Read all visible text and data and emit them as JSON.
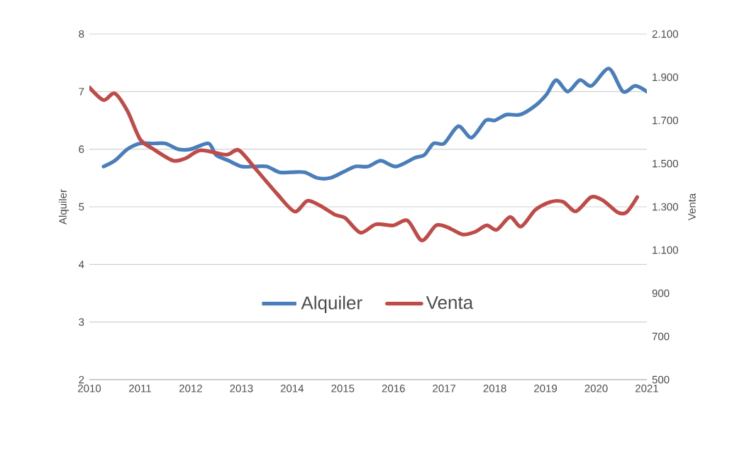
{
  "chart_data": {
    "type": "line",
    "ylabel": "Alquiler",
    "y2label": "Venta",
    "xlim": [
      2010,
      2021
    ],
    "xticks": [
      2010,
      2011,
      2012,
      2013,
      2014,
      2015,
      2016,
      2017,
      2018,
      2019,
      2020,
      2021
    ],
    "ylim": [
      2,
      8
    ],
    "yticks": [
      2,
      3,
      4,
      5,
      6,
      7,
      8
    ],
    "y2lim": [
      500,
      2100
    ],
    "y2ticks": [
      500,
      700,
      900,
      {
        "value": 1100,
        "label": "1.100"
      },
      {
        "value": 1300,
        "label": "1.300"
      },
      {
        "value": 1500,
        "label": "1.500"
      },
      {
        "value": 1700,
        "label": "1.700"
      },
      {
        "value": 1900,
        "label": "1.900"
      },
      {
        "value": 2100,
        "label": "2.100"
      }
    ],
    "grid": "y",
    "legend": "center",
    "marker": "none",
    "line_style": "solid",
    "series": [
      {
        "name": "Alquiler",
        "color": "#4a7ebb",
        "x": [
          2010.28,
          2010.5,
          2010.75,
          2011.0,
          2011.25,
          2011.5,
          2011.75,
          2012.0,
          2012.35,
          2012.5,
          2012.75,
          2013.0,
          2013.25,
          2013.5,
          2013.75,
          2014.0,
          2014.25,
          2014.5,
          2014.75,
          2015.0,
          2015.25,
          2015.5,
          2015.75,
          2016.05,
          2016.42,
          2016.61,
          2016.79,
          2017.0,
          2017.28,
          2017.54,
          2017.82,
          2018.0,
          2018.23,
          2018.5,
          2018.79,
          2019.02,
          2019.21,
          2019.44,
          2019.68,
          2019.91,
          2020.25,
          2020.53,
          2020.77,
          2021.0
        ],
        "values": [
          5.7,
          5.8,
          6.0,
          6.1,
          6.1,
          6.1,
          6.0,
          6.0,
          6.1,
          5.9,
          5.8,
          5.7,
          5.7,
          5.7,
          5.6,
          5.6,
          5.6,
          5.5,
          5.5,
          5.6,
          5.7,
          5.7,
          5.8,
          5.7,
          5.85,
          5.9,
          6.1,
          6.1,
          6.4,
          6.2,
          6.5,
          6.5,
          6.6,
          6.6,
          6.75,
          6.95,
          7.2,
          7.0,
          7.2,
          7.1,
          7.4,
          7.0,
          7.1,
          7.0
        ]
      },
      {
        "name": "Venta",
        "color": "#be4b48",
        "axis": "y2",
        "x": [
          2010.0,
          2010.28,
          2010.5,
          2010.75,
          2011.0,
          2011.25,
          2011.65,
          2011.9,
          2012.2,
          2012.7,
          2012.95,
          2013.3,
          2013.7,
          2014.05,
          2014.3,
          2014.55,
          2014.85,
          2015.05,
          2015.35,
          2015.65,
          2016.0,
          2016.28,
          2016.56,
          2016.84,
          2017.07,
          2017.36,
          2017.6,
          2017.84,
          2018.04,
          2018.3,
          2018.52,
          2018.8,
          2019.1,
          2019.35,
          2019.6,
          2019.9,
          2020.14,
          2020.42,
          2020.6,
          2020.81
        ],
        "values": [
          1853,
          1794,
          1825,
          1744,
          1613,
          1569,
          1514,
          1525,
          1562,
          1541,
          1562,
          1470,
          1361,
          1278,
          1328,
          1306,
          1263,
          1248,
          1180,
          1219,
          1214,
          1236,
          1144,
          1214,
          1205,
          1172,
          1183,
          1214,
          1194,
          1253,
          1209,
          1286,
          1323,
          1323,
          1279,
          1345,
          1329,
          1275,
          1275,
          1345
        ]
      }
    ]
  }
}
